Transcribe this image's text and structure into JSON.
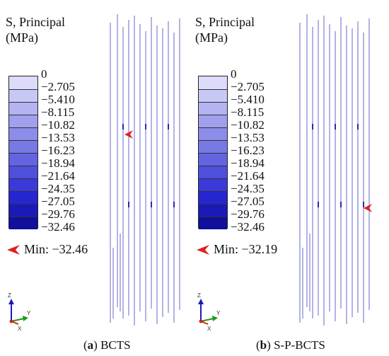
{
  "legend": {
    "title_line1": "S, Principal",
    "title_line2": "(MPa)",
    "ticks": [
      "0",
      "−2.705",
      "−5.410",
      "−8.115",
      "−10.82",
      "−13.53",
      "−16.23",
      "−18.94",
      "−21.64",
      "−24.35",
      "−27.05",
      "−29.76",
      "−32.46"
    ],
    "colors": [
      "#dcdcfa",
      "#c8c8f6",
      "#b4b4f2",
      "#a0a0ee",
      "#8c8cea",
      "#7878e6",
      "#6464e2",
      "#4f4fde",
      "#3a3ada",
      "#2626d0",
      "#1a1ab8",
      "#10109a"
    ]
  },
  "panels": [
    {
      "min_text": "Min: −32.46",
      "caption_letter": "a",
      "caption_text": "BCTS",
      "min_marker_color": "#e02020"
    },
    {
      "min_text": "Min: −32.19",
      "caption_letter": "b",
      "caption_text": "S-P-BCTS",
      "min_marker_color": "#e02020"
    }
  ],
  "axes": {
    "z": "Z",
    "y": "Y",
    "x": "X"
  }
}
